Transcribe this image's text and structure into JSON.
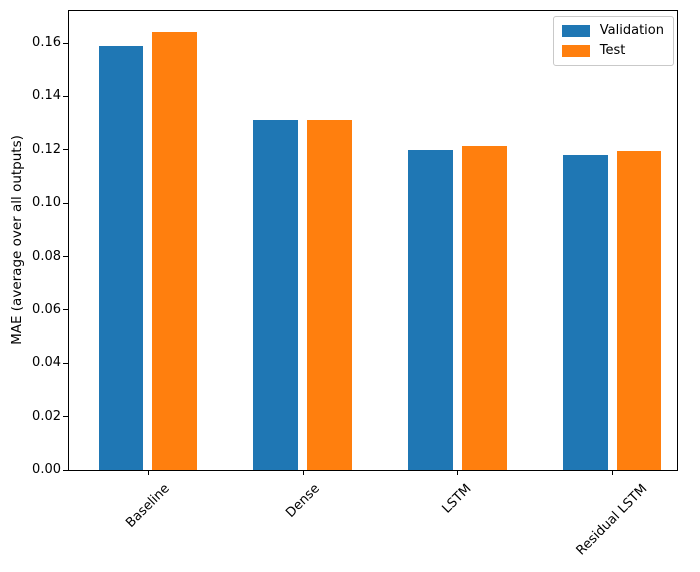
{
  "chart_data": {
    "type": "bar",
    "categories": [
      "Baseline",
      "Dense",
      "LSTM",
      "Residual LSTM"
    ],
    "series": [
      {
        "name": "Validation",
        "color": "#1f77b4",
        "values": [
          0.159,
          0.131,
          0.12,
          0.118
        ]
      },
      {
        "name": "Test",
        "color": "#ff7f0e",
        "values": [
          0.164,
          0.131,
          0.1215,
          0.1195
        ]
      }
    ],
    "title": "",
    "xlabel": "",
    "ylabel": "MAE (average over all outputs)",
    "ylim": [
      0,
      0.172
    ],
    "xlim": [
      -0.508,
      3.418
    ],
    "yticks": [
      0.0,
      0.02,
      0.04,
      0.06,
      0.08,
      0.1,
      0.12,
      0.14,
      0.16
    ],
    "ytick_labels": [
      "0.00",
      "0.02",
      "0.04",
      "0.06",
      "0.08",
      "0.10",
      "0.12",
      "0.14",
      "0.16"
    ],
    "xtick_rotation": 45,
    "grid": false,
    "bar_width": 0.29,
    "group_offsets": [
      -0.1725,
      0.1725
    ],
    "legend": {
      "position": "upper right",
      "entries": [
        "Validation",
        "Test"
      ]
    }
  }
}
